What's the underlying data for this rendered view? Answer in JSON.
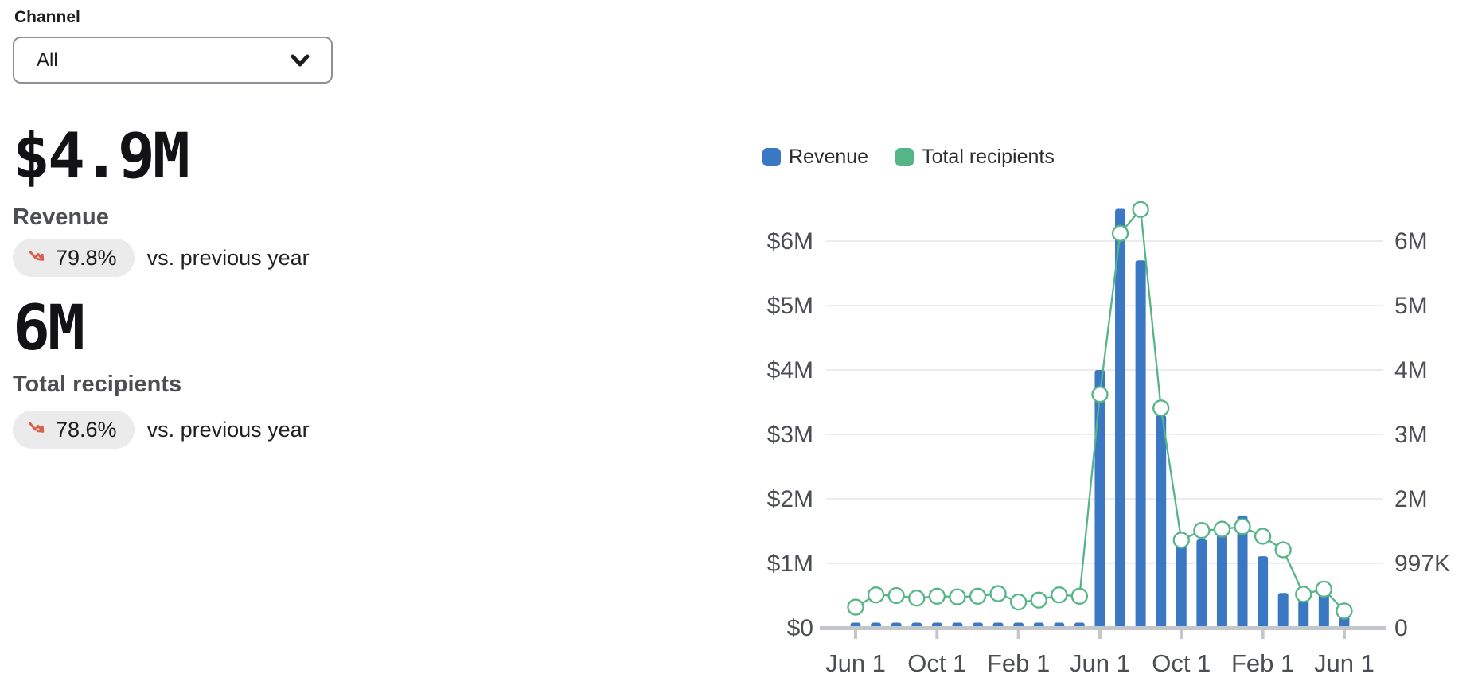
{
  "filters": {
    "channel": {
      "label": "Channel",
      "value": "All"
    }
  },
  "metrics": [
    {
      "value": "$4.9M",
      "label": "Revenue",
      "delta": "79.8%",
      "delta_direction": "down",
      "comparison": "vs. previous year"
    },
    {
      "value": "6M",
      "label": "Total recipients",
      "delta": "78.6%",
      "delta_direction": "down",
      "comparison": "vs. previous year"
    }
  ],
  "legend": [
    {
      "label": "Revenue",
      "color": "#3b78c3"
    },
    {
      "label": "Total recipients",
      "color": "#55b586"
    }
  ],
  "colors": {
    "bar_blue": "#3b78c3",
    "line_green": "#55b586",
    "marker_fill": "#ffffff",
    "delta_red": "#d95f4e",
    "pill_bg": "#ebebeb",
    "gridline": "#ececec",
    "axis_line": "#c3c6ca",
    "axis_text": "#4b4e53"
  },
  "chart_data": {
    "type": "combo-bar-line",
    "x_months_count": 25,
    "x_tick_labels": [
      "Jun 1",
      "Oct 1",
      "Feb 1",
      "Jun 1",
      "Oct 1",
      "Feb 1",
      "Jun 1"
    ],
    "x_tick_indices": [
      0,
      4,
      8,
      12,
      16,
      20,
      24
    ],
    "left_axis": {
      "tick_labels": [
        "$0",
        "$1M",
        "$2M",
        "$3M",
        "$4M",
        "$5M",
        "$6M"
      ],
      "range_millions": [
        0,
        6.6
      ],
      "grid": true
    },
    "right_axis": {
      "tick_labels": [
        "0",
        "997K",
        "2M",
        "3M",
        "4M",
        "5M",
        "6M"
      ],
      "grid": false
    },
    "legend_position": "top-left",
    "series": [
      {
        "name": "Revenue",
        "type": "bar",
        "axis": "left",
        "color": "#3b78c3",
        "values_millions_usd": [
          0.08,
          0.08,
          0.08,
          0.08,
          0.08,
          0.08,
          0.08,
          0.08,
          0.08,
          0.08,
          0.08,
          0.08,
          4.0,
          6.5,
          5.7,
          3.3,
          1.27,
          1.37,
          1.48,
          1.74,
          1.11,
          0.54,
          0.44,
          0.58,
          0.21
        ]
      },
      {
        "name": "Total recipients",
        "type": "line",
        "axis": "right",
        "color": "#55b586",
        "values_millions": [
          0.32,
          0.51,
          0.5,
          0.46,
          0.49,
          0.48,
          0.49,
          0.53,
          0.4,
          0.43,
          0.51,
          0.49,
          3.62,
          6.12,
          6.49,
          3.41,
          1.36,
          1.51,
          1.53,
          1.57,
          1.42,
          1.21,
          0.52,
          0.6,
          0.26
        ]
      }
    ]
  }
}
